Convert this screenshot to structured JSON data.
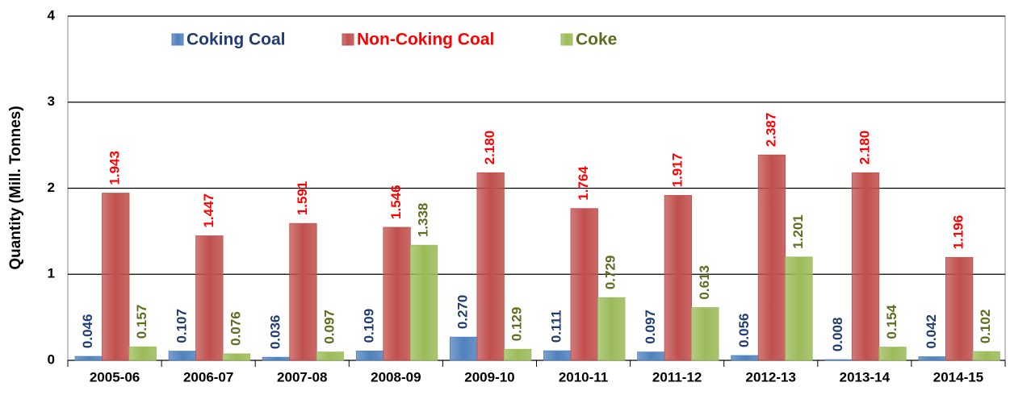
{
  "chart_data": {
    "type": "bar",
    "y_label": "Quantity (Mill. Tonnes)",
    "categories": [
      "2005-06",
      "2006-07",
      "2007-08",
      "2008-09",
      "2009-10",
      "2010-11",
      "2011-12",
      "2012-13",
      "2013-14",
      "2014-15"
    ],
    "series": [
      {
        "name": "Coking Coal",
        "color": "#4f81bd",
        "label_color": "#1f3b73",
        "values": [
          0.046,
          0.107,
          0.036,
          0.109,
          0.27,
          0.111,
          0.097,
          0.056,
          0.008,
          0.042
        ],
        "value_labels": [
          "0.046",
          "0.107",
          "0.036",
          "0.109",
          "0.270",
          "0.111",
          "0.097",
          "0.056",
          "0.008",
          "0.042"
        ]
      },
      {
        "name": "Non-Coking Coal",
        "color": "#c0504d",
        "label_color": "#ff0000",
        "values": [
          1.943,
          1.447,
          1.591,
          1.546,
          2.18,
          1.764,
          1.917,
          2.387,
          2.18,
          1.196
        ],
        "value_labels": [
          "1.943",
          "1.447",
          "1.591",
          "1.546",
          "2.180",
          "1.764",
          "1.917",
          "2.387",
          "2.180",
          "1.196"
        ]
      },
      {
        "name": "Coke",
        "color": "#9bbb59",
        "label_color": "#5f6b1f",
        "values": [
          0.157,
          0.076,
          0.097,
          1.338,
          0.129,
          0.729,
          0.613,
          1.201,
          0.154,
          0.102
        ],
        "value_labels": [
          "0.157",
          "0.076",
          "0.097",
          "1.338",
          "0.129",
          "0.729",
          "0.613",
          "1.201",
          "0.154",
          "0.102"
        ]
      }
    ],
    "ylim": [
      0,
      4
    ],
    "yticks": [
      0,
      1,
      2,
      3,
      4
    ],
    "grid": true
  }
}
